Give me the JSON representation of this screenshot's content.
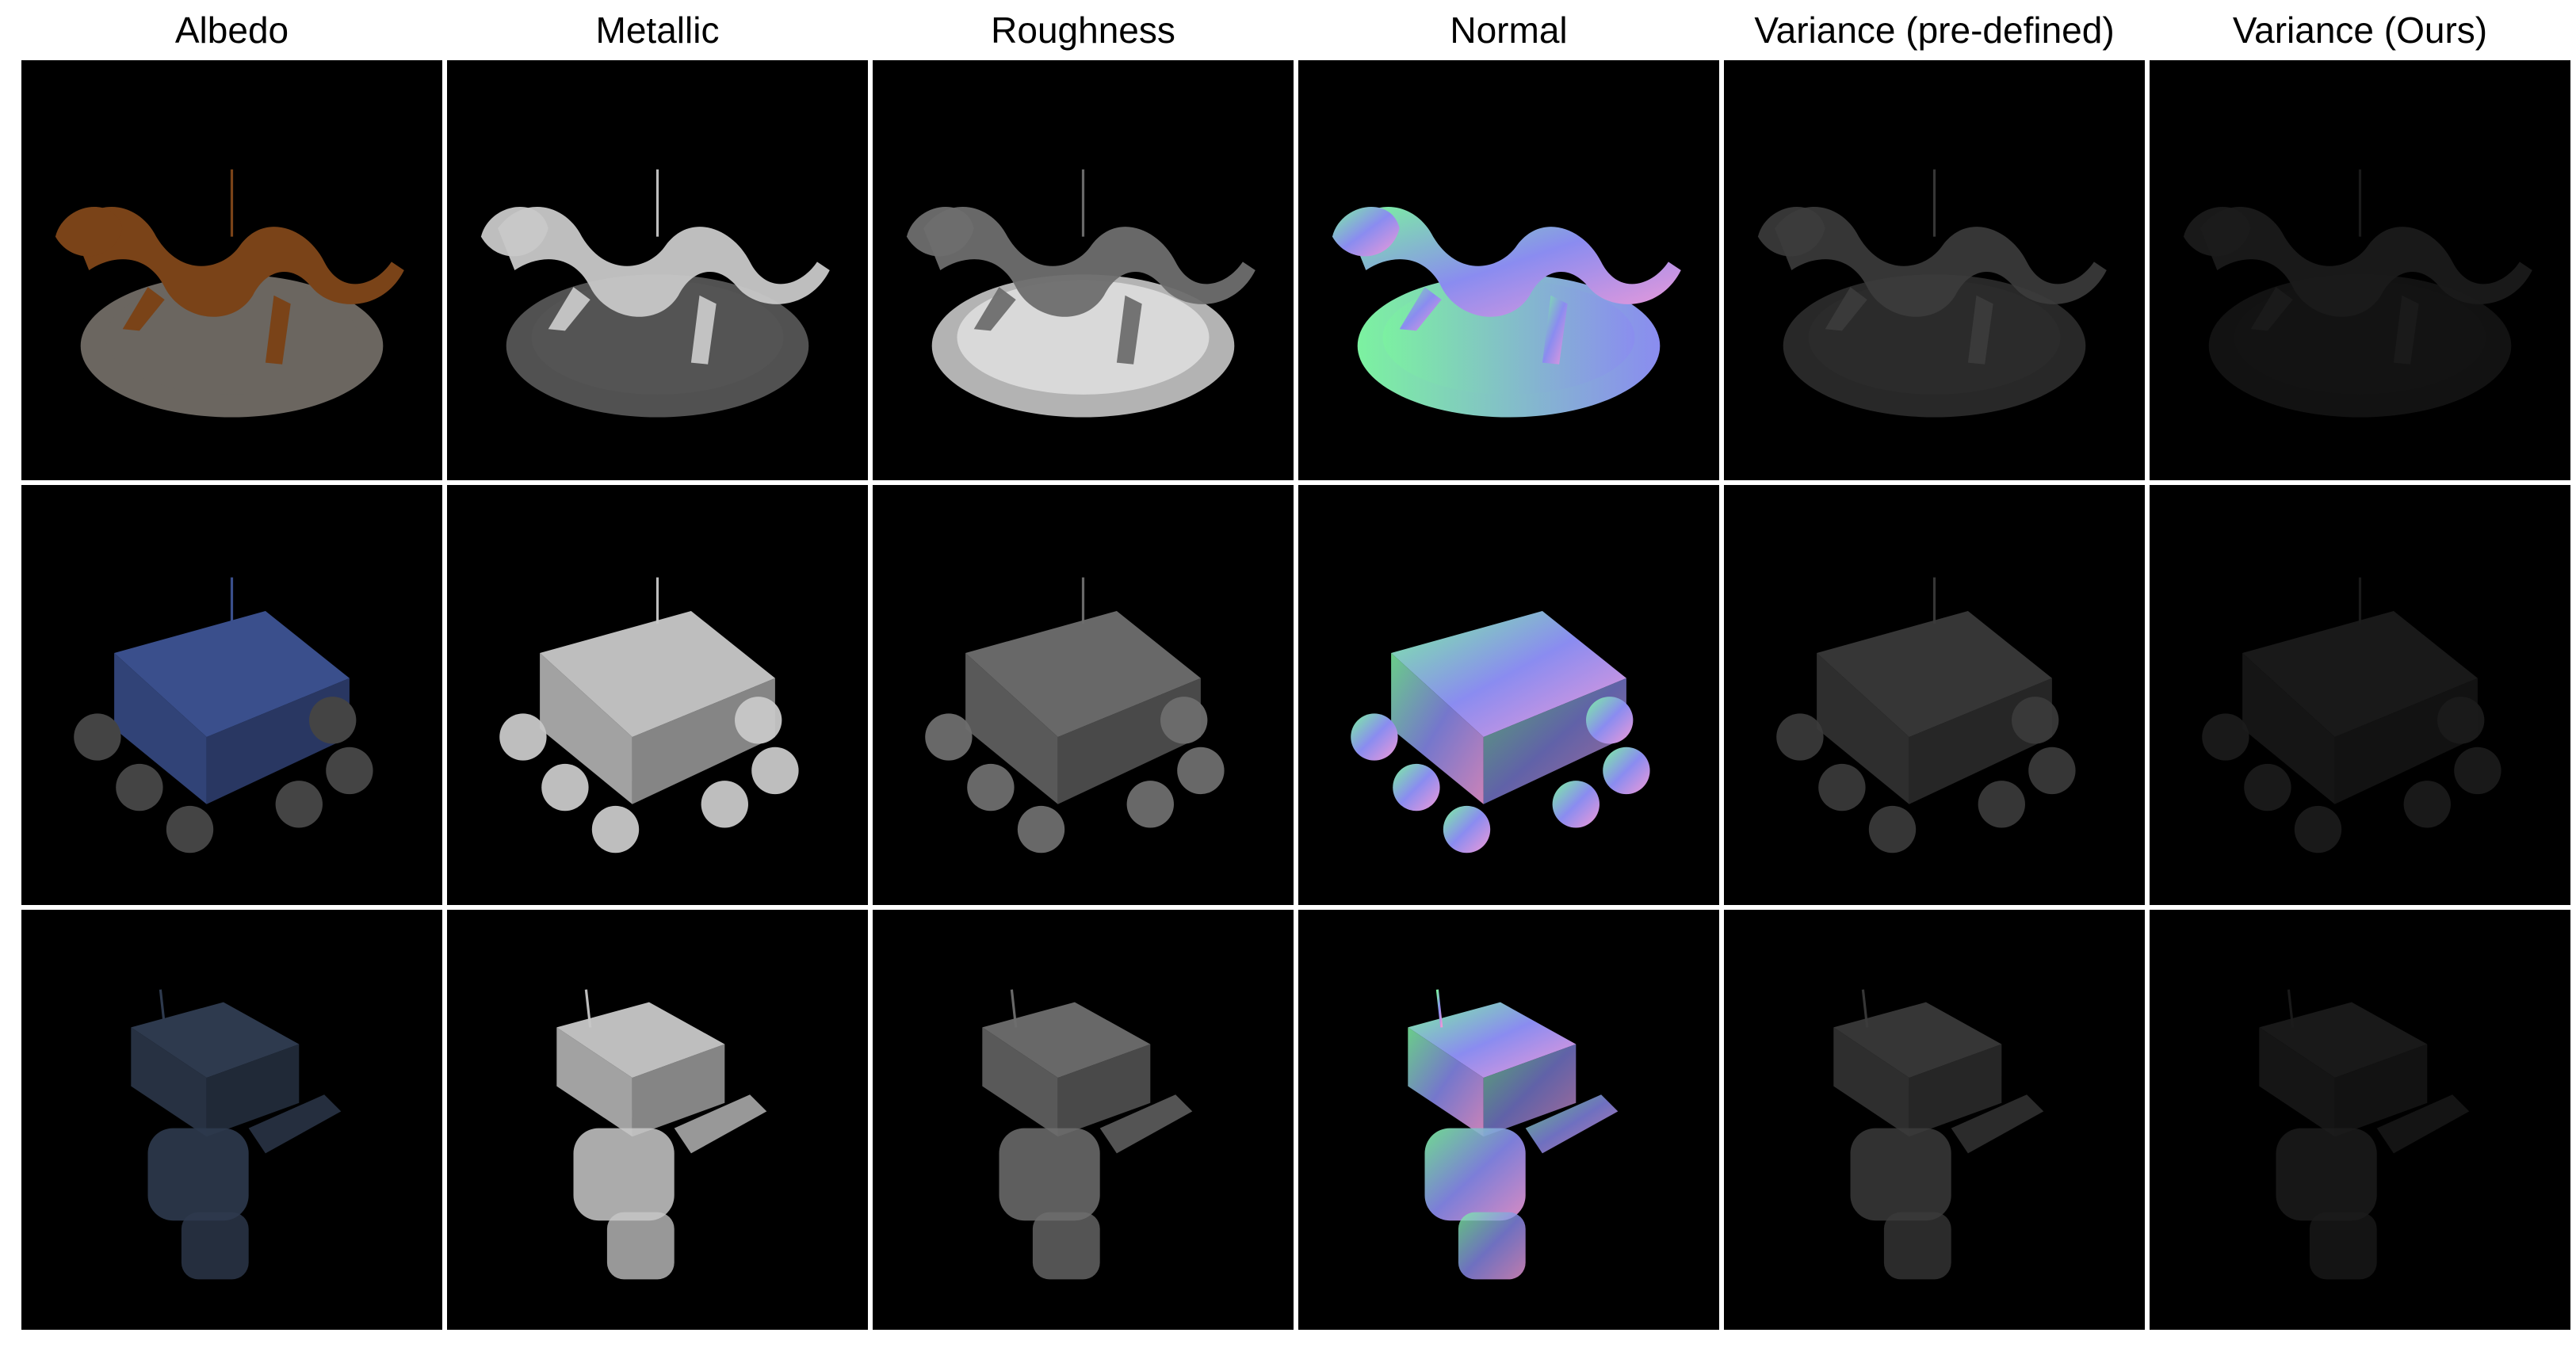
{
  "columns": [
    {
      "label": "Albedo",
      "key": "albedo"
    },
    {
      "label": "Metallic",
      "key": "metallic"
    },
    {
      "label": "Roughness",
      "key": "roughness"
    },
    {
      "label": "Normal",
      "key": "normal"
    },
    {
      "label": "Variance (pre-defined)",
      "key": "var_pre"
    },
    {
      "label": "Variance (Ours)",
      "key": "var_ours"
    }
  ],
  "rows": [
    {
      "subject": "dragon-on-pedestal"
    },
    {
      "subject": "rover-vehicle"
    },
    {
      "subject": "robot"
    }
  ],
  "colors": {
    "background": "#000000",
    "separator": "#ffffff",
    "albedo_dragon": "#7a4318",
    "albedo_rover": "#3a4f8c",
    "albedo_robot": "#2e3a4e",
    "normal_blue": "#8a8cf0",
    "normal_green": "#7cf2a0",
    "normal_pink": "#f09ad8"
  }
}
